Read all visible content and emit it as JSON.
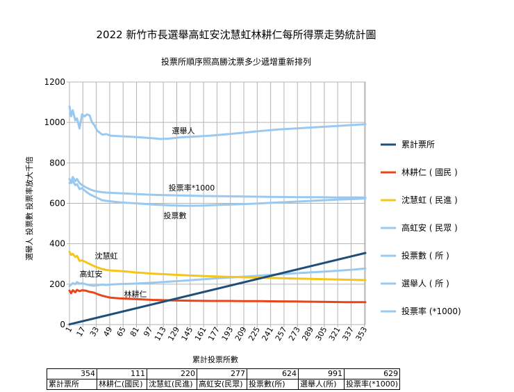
{
  "chart_data": {
    "type": "line",
    "title": "2022 新竹市長選舉高虹安沈慧虹林耕仁每所得票走勢統計圖",
    "subtitle": "投票所順序照高勝沈票多少遞增重新排列",
    "xlabel": "累計投票所數",
    "ylabel": "選舉人 投票數 投票率放大千倍",
    "ylim": [
      0,
      1200
    ],
    "yticks": [
      0,
      200,
      400,
      600,
      800,
      1000,
      1200
    ],
    "xlim": [
      1,
      354
    ],
    "xticks": [
      1,
      17,
      33,
      49,
      65,
      81,
      97,
      113,
      129,
      145,
      161,
      177,
      193,
      209,
      225,
      241,
      257,
      273,
      289,
      305,
      321,
      337,
      353
    ],
    "grid": true,
    "legend_position": "right",
    "series": [
      {
        "name": "累計票所",
        "color": "#1f4e79",
        "x": [
          1,
          354
        ],
        "values": [
          1,
          354
        ]
      },
      {
        "name": "林耕仁 ( 國民 )",
        "color": "#e8461a",
        "x": [
          1,
          3,
          5,
          8,
          10,
          13,
          16,
          20,
          25,
          30,
          35,
          40,
          45,
          50,
          60,
          70,
          80,
          90,
          100,
          110,
          120,
          130,
          150,
          170,
          190,
          210,
          230,
          250,
          270,
          290,
          310,
          330,
          354
        ],
        "values": [
          168,
          155,
          170,
          160,
          172,
          165,
          170,
          168,
          162,
          158,
          150,
          143,
          138,
          133,
          130,
          128,
          126,
          124,
          122,
          121,
          120,
          119,
          118,
          117,
          117,
          116,
          116,
          115,
          114,
          113,
          112,
          111,
          111
        ]
      },
      {
        "name": "沈慧虹 ( 民進 )",
        "color": "#f5c518",
        "x": [
          1,
          3,
          5,
          8,
          10,
          13,
          16,
          20,
          25,
          30,
          35,
          40,
          45,
          50,
          60,
          70,
          80,
          90,
          100,
          110,
          120,
          130,
          150,
          170,
          190,
          210,
          230,
          250,
          270,
          290,
          310,
          330,
          354
        ],
        "values": [
          360,
          345,
          350,
          335,
          340,
          315,
          318,
          310,
          300,
          290,
          282,
          275,
          270,
          268,
          265,
          262,
          258,
          255,
          252,
          250,
          248,
          246,
          242,
          239,
          236,
          234,
          232,
          230,
          228,
          226,
          224,
          222,
          220
        ]
      },
      {
        "name": "高虹安 ( 民眾 )",
        "color": "#99c9f0",
        "x": [
          1,
          3,
          5,
          8,
          10,
          13,
          16,
          20,
          25,
          30,
          35,
          40,
          45,
          50,
          60,
          80,
          100,
          120,
          140,
          160,
          180,
          200,
          220,
          240,
          260,
          280,
          300,
          320,
          340,
          354
        ],
        "values": [
          190,
          198,
          205,
          200,
          210,
          202,
          205,
          200,
          195,
          192,
          195,
          198,
          196,
          198,
          200,
          203,
          207,
          212,
          218,
          224,
          230,
          235,
          240,
          246,
          251,
          256,
          261,
          266,
          272,
          277
        ]
      },
      {
        "name": "投票數 ( 所 )",
        "color": "#99c9f0",
        "x": [
          1,
          3,
          5,
          8,
          10,
          13,
          16,
          20,
          25,
          30,
          35,
          40,
          45,
          50,
          60,
          70,
          80,
          90,
          100,
          110,
          120,
          130,
          140,
          150,
          160,
          180,
          200,
          220,
          240,
          260,
          280,
          300,
          320,
          340,
          354
        ],
        "values": [
          720,
          700,
          710,
          690,
          695,
          670,
          675,
          660,
          645,
          635,
          625,
          615,
          612,
          610,
          605,
          602,
          600,
          597,
          594,
          592,
          590,
          589,
          588,
          588,
          589,
          592,
          595,
          598,
          602,
          606,
          610,
          614,
          618,
          621,
          624
        ]
      },
      {
        "name": "選舉人 ( 所 )",
        "color": "#99c9f0",
        "x": [
          1,
          3,
          5,
          8,
          10,
          13,
          16,
          19,
          22,
          25,
          28,
          31,
          34,
          37,
          40,
          45,
          50,
          60,
          70,
          80,
          90,
          100,
          110,
          120,
          130,
          140,
          150,
          170,
          190,
          210,
          230,
          250,
          270,
          290,
          310,
          330,
          354
        ],
        "values": [
          1080,
          1030,
          1060,
          1010,
          1020,
          970,
          1040,
          1030,
          1040,
          1035,
          1000,
          985,
          960,
          950,
          940,
          942,
          935,
          932,
          930,
          928,
          925,
          922,
          918,
          920,
          925,
          928,
          930,
          935,
          942,
          950,
          958,
          965,
          970,
          975,
          980,
          985,
          991
        ]
      },
      {
        "name": "投票率 (*1000)",
        "color": "#99c9f0",
        "x": [
          1,
          3,
          5,
          8,
          10,
          13,
          16,
          20,
          25,
          30,
          35,
          40,
          45,
          50,
          60,
          70,
          80,
          90,
          100,
          120,
          140,
          160,
          180,
          200,
          220,
          240,
          260,
          280,
          300,
          320,
          340,
          354
        ],
        "values": [
          700,
          705,
          730,
          710,
          720,
          700,
          690,
          680,
          670,
          662,
          658,
          655,
          653,
          652,
          650,
          648,
          646,
          644,
          642,
          640,
          638,
          636,
          635,
          634,
          633,
          632,
          631,
          630,
          630,
          629,
          629,
          629
        ]
      }
    ],
    "annotations": [
      {
        "text": "選舉人",
        "series": "選舉人 ( 所 )"
      },
      {
        "text": "投票率*1000",
        "series": "投票率 (*1000)"
      },
      {
        "text": "投票數",
        "series": "投票數 ( 所 )"
      },
      {
        "text": "沈慧虹",
        "series": "沈慧虹 ( 民進 )"
      },
      {
        "text": "高虹安",
        "series": "高虹安 ( 民眾 )"
      },
      {
        "text": "林耕仁",
        "series": "林耕仁 ( 國民 )"
      }
    ]
  },
  "summary_table": {
    "values": [
      "354",
      "111",
      "220",
      "277",
      "624",
      "991",
      "629"
    ],
    "headers": [
      "累計票所",
      "林耕仁(國民)",
      "沈慧虹(民進)",
      "高虹安(民眾)",
      "投票數(所)",
      "選舉人(所)",
      "投票率(*1000)"
    ]
  }
}
